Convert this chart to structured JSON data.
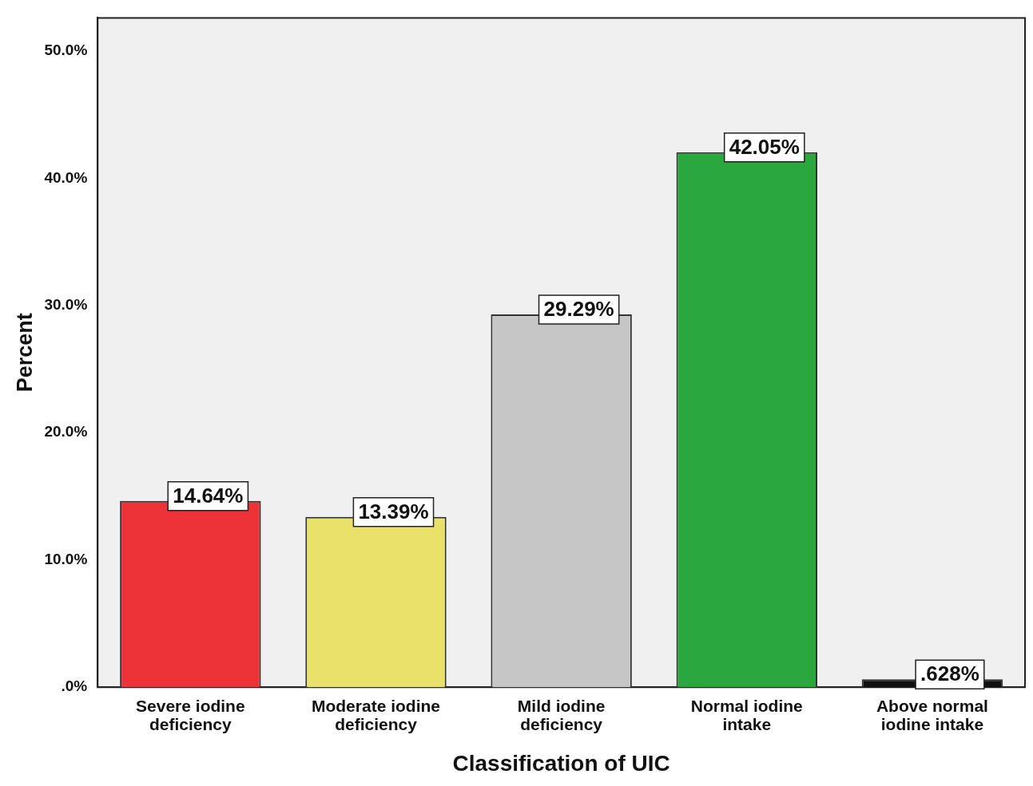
{
  "chart_data": {
    "type": "bar",
    "xlabel": "Classification of UIC",
    "ylabel": "Percent",
    "categories": [
      "Severe iodine deficiency",
      "Moderate iodine deficiency",
      "Mild iodine deficiency",
      "Normal iodine intake",
      "Above normal iodine intake"
    ],
    "values": [
      14.64,
      13.39,
      29.29,
      42.05,
      0.628
    ],
    "colors": [
      "#ee3338",
      "#e8e26a",
      "#c6c6c6",
      "#2aa83e",
      "#111111"
    ],
    "value_labels": [
      "14.64%",
      "13.39%",
      "29.29%",
      "42.05%",
      ".628%"
    ],
    "ylim": [
      0,
      52.6
    ],
    "yticks": [
      {
        "value": 0,
        "label": ".0%"
      },
      {
        "value": 10,
        "label": "10.0%"
      },
      {
        "value": 20,
        "label": "20.0%"
      },
      {
        "value": 30,
        "label": "30.0%"
      },
      {
        "value": 40,
        "label": "40.0%"
      },
      {
        "value": 50,
        "label": "50.0%"
      }
    ],
    "grid": false,
    "legend": false
  }
}
